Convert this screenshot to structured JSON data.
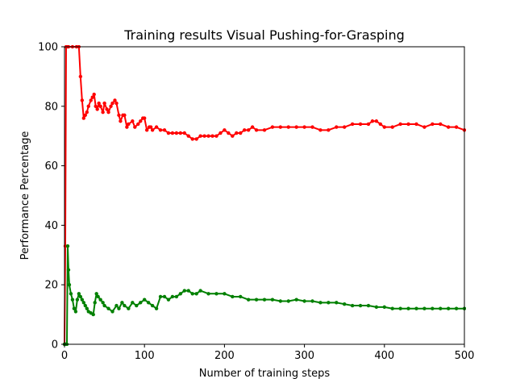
{
  "chart_data": {
    "type": "line",
    "title": "Training results Visual Pushing-for-Grasping",
    "xlabel": "Number of training steps",
    "ylabel": "Performance Percentage",
    "xlim": [
      0,
      500
    ],
    "ylim": [
      0,
      100
    ],
    "xticks": [
      0,
      100,
      200,
      300,
      400,
      500
    ],
    "yticks": [
      0,
      20,
      40,
      60,
      80,
      100
    ],
    "grid": false,
    "legend": "none",
    "series": [
      {
        "color": "#ff0000",
        "x": [
          0,
          1,
          2,
          3,
          5,
          10,
          15,
          18,
          20,
          22,
          24,
          26,
          28,
          30,
          33,
          35,
          37,
          39,
          41,
          43,
          45,
          48,
          50,
          53,
          55,
          58,
          60,
          63,
          65,
          68,
          70,
          73,
          75,
          78,
          80,
          85,
          88,
          92,
          95,
          98,
          100,
          103,
          106,
          108,
          110,
          115,
          120,
          125,
          130,
          135,
          140,
          145,
          150,
          155,
          160,
          165,
          170,
          175,
          180,
          185,
          190,
          195,
          200,
          205,
          210,
          215,
          220,
          225,
          230,
          235,
          240,
          250,
          260,
          270,
          280,
          290,
          300,
          310,
          320,
          330,
          340,
          350,
          360,
          370,
          380,
          385,
          390,
          395,
          400,
          410,
          420,
          430,
          440,
          450,
          460,
          470,
          480,
          490,
          500
        ],
        "y": [
          0,
          33,
          100,
          100,
          100,
          100,
          100,
          100,
          90,
          82,
          76,
          77,
          78,
          80,
          82,
          83,
          84,
          80,
          79,
          81,
          80,
          78,
          81,
          79,
          78,
          80,
          81,
          82,
          81,
          77,
          75,
          77,
          77,
          73,
          74,
          75,
          73,
          74,
          75,
          76,
          76,
          72,
          73,
          73,
          72,
          73,
          72,
          72,
          71,
          71,
          71,
          71,
          71,
          70,
          69,
          69,
          70,
          70,
          70,
          70,
          70,
          71,
          72,
          71,
          70,
          71,
          71,
          72,
          72,
          73,
          72,
          72,
          73,
          73,
          73,
          73,
          73,
          73,
          72,
          72,
          73,
          73,
          74,
          74,
          74,
          75,
          75,
          74,
          73,
          73,
          74,
          74,
          74,
          73,
          74,
          74,
          73,
          73,
          72
        ]
      },
      {
        "color": "#008000",
        "x": [
          0,
          1,
          2,
          3,
          4,
          5,
          6,
          8,
          10,
          12,
          14,
          16,
          18,
          20,
          22,
          24,
          26,
          28,
          30,
          33,
          36,
          38,
          40,
          42,
          45,
          48,
          50,
          55,
          60,
          65,
          68,
          72,
          75,
          80,
          85,
          90,
          95,
          100,
          105,
          110,
          115,
          120,
          125,
          130,
          135,
          140,
          145,
          150,
          155,
          160,
          165,
          170,
          180,
          190,
          200,
          210,
          220,
          230,
          240,
          250,
          260,
          270,
          280,
          290,
          300,
          310,
          320,
          330,
          340,
          350,
          360,
          370,
          380,
          390,
          400,
          410,
          420,
          430,
          440,
          450,
          460,
          470,
          480,
          490,
          500
        ],
        "y": [
          0,
          0,
          0,
          0,
          33,
          25,
          20,
          17,
          15,
          12,
          11,
          15,
          17,
          16,
          15,
          14,
          13,
          12,
          11,
          10.5,
          10,
          14,
          17,
          16,
          15,
          14,
          13,
          12,
          11,
          13,
          12,
          14,
          13,
          12,
          14,
          13,
          14,
          15,
          14,
          13,
          12,
          16,
          16,
          15,
          16,
          16,
          17,
          18,
          18,
          17,
          17,
          18,
          17,
          17,
          17,
          16,
          16,
          15,
          15,
          15,
          15,
          14.5,
          14.5,
          15,
          14.5,
          14.5,
          14,
          14,
          14,
          13.5,
          13,
          13,
          13,
          12.5,
          12.5,
          12,
          12,
          12,
          12,
          12,
          12,
          12,
          12,
          12,
          12
        ]
      }
    ]
  }
}
